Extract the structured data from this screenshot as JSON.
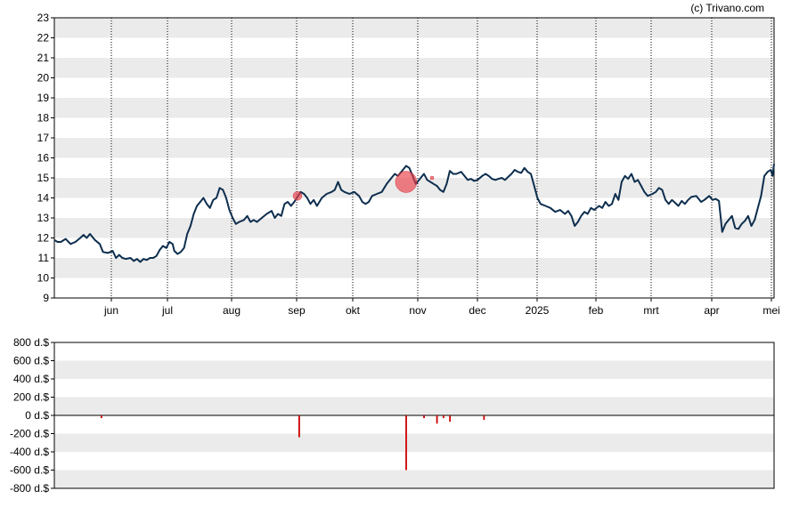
{
  "credit": "(c) Trivano.com",
  "chart_data": [
    {
      "type": "line",
      "ylim": [
        9,
        23
      ],
      "yticks": [
        9,
        10,
        11,
        12,
        13,
        14,
        15,
        16,
        17,
        18,
        19,
        20,
        21,
        22,
        23
      ],
      "month_labels": [
        "jun",
        "jul",
        "aug",
        "sep",
        "okt",
        "nov",
        "dec",
        "2025",
        "feb",
        "mrt",
        "apr",
        "mei"
      ],
      "grid": "horizontal bands + dotted monthly verticals",
      "series": [
        {
          "color": "#0d2e4e",
          "points": [
            [
              0,
              11.9
            ],
            [
              2,
              11.8
            ],
            [
              4,
              11.8
            ],
            [
              7,
              11.95
            ],
            [
              10,
              11.7
            ],
            [
              13,
              11.8
            ],
            [
              16,
              12.0
            ],
            [
              18,
              12.15
            ],
            [
              20,
              12.0
            ],
            [
              22,
              12.2
            ],
            [
              25,
              11.9
            ],
            [
              28,
              11.7
            ],
            [
              30,
              11.3
            ],
            [
              33,
              11.25
            ],
            [
              36,
              11.35
            ],
            [
              38,
              11.0
            ],
            [
              40,
              11.15
            ],
            [
              42,
              11.0
            ],
            [
              44,
              10.95
            ],
            [
              47,
              11.0
            ],
            [
              49,
              10.85
            ],
            [
              51,
              10.95
            ],
            [
              53,
              10.8
            ],
            [
              55,
              10.95
            ],
            [
              57,
              10.9
            ],
            [
              59,
              11.0
            ],
            [
              61,
              11.0
            ],
            [
              63,
              11.1
            ],
            [
              65,
              11.4
            ],
            [
              67,
              11.6
            ],
            [
              69,
              11.5
            ],
            [
              71,
              11.8
            ],
            [
              73,
              11.7
            ],
            [
              74,
              11.35
            ],
            [
              76,
              11.2
            ],
            [
              78,
              11.3
            ],
            [
              80,
              11.5
            ],
            [
              82,
              12.2
            ],
            [
              84,
              12.6
            ],
            [
              86,
              13.2
            ],
            [
              88,
              13.6
            ],
            [
              90,
              13.8
            ],
            [
              92,
              14.0
            ],
            [
              94,
              13.7
            ],
            [
              96,
              13.5
            ],
            [
              98,
              13.9
            ],
            [
              100,
              14.0
            ],
            [
              102,
              14.5
            ],
            [
              104,
              14.4
            ],
            [
              106,
              14.0
            ],
            [
              108,
              13.4
            ],
            [
              110,
              13.0
            ],
            [
              112,
              12.7
            ],
            [
              114,
              12.8
            ],
            [
              117,
              12.9
            ],
            [
              119,
              13.1
            ],
            [
              121,
              12.8
            ],
            [
              123,
              12.9
            ],
            [
              125,
              12.8
            ],
            [
              128,
              13.0
            ],
            [
              131,
              13.2
            ],
            [
              134,
              13.35
            ],
            [
              136,
              13.0
            ],
            [
              138,
              13.2
            ],
            [
              140,
              13.1
            ],
            [
              142,
              13.7
            ],
            [
              144,
              13.8
            ],
            [
              146,
              13.6
            ],
            [
              148,
              13.8
            ],
            [
              150,
              14.05
            ],
            [
              152,
              14.3
            ],
            [
              154,
              14.2
            ],
            [
              156,
              14.0
            ],
            [
              158,
              13.7
            ],
            [
              160,
              13.9
            ],
            [
              162,
              13.6
            ],
            [
              165,
              14.0
            ],
            [
              168,
              14.2
            ],
            [
              171,
              14.3
            ],
            [
              173,
              14.4
            ],
            [
              175,
              14.8
            ],
            [
              177,
              14.4
            ],
            [
              179,
              14.3
            ],
            [
              182,
              14.2
            ],
            [
              185,
              14.3
            ],
            [
              188,
              14.1
            ],
            [
              190,
              13.8
            ],
            [
              192,
              13.7
            ],
            [
              194,
              13.8
            ],
            [
              196,
              14.1
            ],
            [
              199,
              14.2
            ],
            [
              202,
              14.3
            ],
            [
              205,
              14.7
            ],
            [
              208,
              15.0
            ],
            [
              210,
              15.2
            ],
            [
              212,
              15.1
            ],
            [
              215,
              15.4
            ],
            [
              217,
              15.6
            ],
            [
              219,
              15.5
            ],
            [
              221,
              15.1
            ],
            [
              223,
              14.7
            ],
            [
              226,
              15.0
            ],
            [
              228,
              15.2
            ],
            [
              230,
              14.9
            ],
            [
              232,
              14.8
            ],
            [
              234,
              14.7
            ],
            [
              236,
              14.6
            ],
            [
              238,
              14.4
            ],
            [
              240,
              14.3
            ],
            [
              242,
              14.7
            ],
            [
              244,
              15.35
            ],
            [
              246,
              15.2
            ],
            [
              248,
              15.2
            ],
            [
              251,
              15.3
            ],
            [
              253,
              15.1
            ],
            [
              255,
              14.9
            ],
            [
              257,
              14.95
            ],
            [
              259,
              14.85
            ],
            [
              261,
              14.9
            ],
            [
              264,
              15.1
            ],
            [
              266,
              15.2
            ],
            [
              268,
              15.1
            ],
            [
              270,
              14.95
            ],
            [
              272,
              14.9
            ],
            [
              274,
              14.95
            ],
            [
              276,
              15.0
            ],
            [
              278,
              14.9
            ],
            [
              280,
              15.05
            ],
            [
              282,
              15.2
            ],
            [
              284,
              15.4
            ],
            [
              286,
              15.3
            ],
            [
              288,
              15.25
            ],
            [
              290,
              15.5
            ],
            [
              292,
              15.3
            ],
            [
              294,
              15.2
            ],
            [
              296,
              14.6
            ],
            [
              298,
              14.0
            ],
            [
              300,
              13.7
            ],
            [
              303,
              13.6
            ],
            [
              306,
              13.5
            ],
            [
              309,
              13.3
            ],
            [
              312,
              13.4
            ],
            [
              315,
              13.2
            ],
            [
              317,
              13.35
            ],
            [
              319,
              13.1
            ],
            [
              321,
              12.6
            ],
            [
              323,
              12.8
            ],
            [
              325,
              13.1
            ],
            [
              327,
              13.3
            ],
            [
              329,
              13.2
            ],
            [
              331,
              13.5
            ],
            [
              333,
              13.4
            ],
            [
              336,
              13.6
            ],
            [
              338,
              13.5
            ],
            [
              340,
              13.8
            ],
            [
              342,
              13.6
            ],
            [
              344,
              13.7
            ],
            [
              346,
              14.2
            ],
            [
              348,
              13.9
            ],
            [
              350,
              14.8
            ],
            [
              352,
              15.1
            ],
            [
              354,
              14.95
            ],
            [
              356,
              15.2
            ],
            [
              358,
              14.8
            ],
            [
              360,
              14.9
            ],
            [
              362,
              14.6
            ],
            [
              364,
              14.3
            ],
            [
              366,
              14.1
            ],
            [
              369,
              14.2
            ],
            [
              371,
              14.3
            ],
            [
              373,
              14.5
            ],
            [
              375,
              14.4
            ],
            [
              377,
              13.9
            ],
            [
              379,
              13.7
            ],
            [
              381,
              13.9
            ],
            [
              383,
              13.75
            ],
            [
              385,
              13.6
            ],
            [
              387,
              13.85
            ],
            [
              389,
              13.7
            ],
            [
              391,
              13.9
            ],
            [
              393,
              14.05
            ],
            [
              396,
              14.1
            ],
            [
              399,
              13.8
            ],
            [
              401,
              13.9
            ],
            [
              404,
              14.1
            ],
            [
              406,
              13.9
            ],
            [
              408,
              13.95
            ],
            [
              410,
              13.85
            ],
            [
              412,
              12.3
            ],
            [
              414,
              12.7
            ],
            [
              416,
              12.9
            ],
            [
              418,
              13.1
            ],
            [
              420,
              12.5
            ],
            [
              422,
              12.45
            ],
            [
              424,
              12.7
            ],
            [
              426,
              12.85
            ],
            [
              428,
              13.1
            ],
            [
              430,
              12.6
            ],
            [
              432,
              12.9
            ],
            [
              434,
              13.5
            ],
            [
              436,
              14.1
            ],
            [
              438,
              15.1
            ],
            [
              440,
              15.3
            ],
            [
              442,
              15.4
            ],
            [
              443,
              15.1
            ],
            [
              444,
              15.7
            ]
          ]
        }
      ],
      "markers": [
        {
          "x": 150,
          "y": 14.1,
          "size": "small"
        },
        {
          "x": 217,
          "y": 14.8,
          "size": "large"
        },
        {
          "x": 233,
          "y": 15.0,
          "size": "tiny"
        }
      ]
    },
    {
      "type": "bar",
      "ylim": [
        -800,
        800
      ],
      "yticks": [
        -800,
        -600,
        -400,
        -200,
        0,
        200,
        400,
        600,
        800
      ],
      "ytick_labels": [
        "-800 d.$",
        "-600 d.$",
        "-400 d.$",
        "-200 d.$",
        "0 d.$",
        "200 d.$",
        "400 d.$",
        "600 d.$",
        "800 d.$"
      ],
      "color": "#cc0000",
      "bars": [
        {
          "x": 29,
          "value": -30
        },
        {
          "x": 151,
          "value": -240
        },
        {
          "x": 217,
          "value": -600
        },
        {
          "x": 228,
          "value": -30
        },
        {
          "x": 236,
          "value": -90
        },
        {
          "x": 240,
          "value": -30
        },
        {
          "x": 244,
          "value": -70
        },
        {
          "x": 265,
          "value": -50
        }
      ]
    }
  ]
}
